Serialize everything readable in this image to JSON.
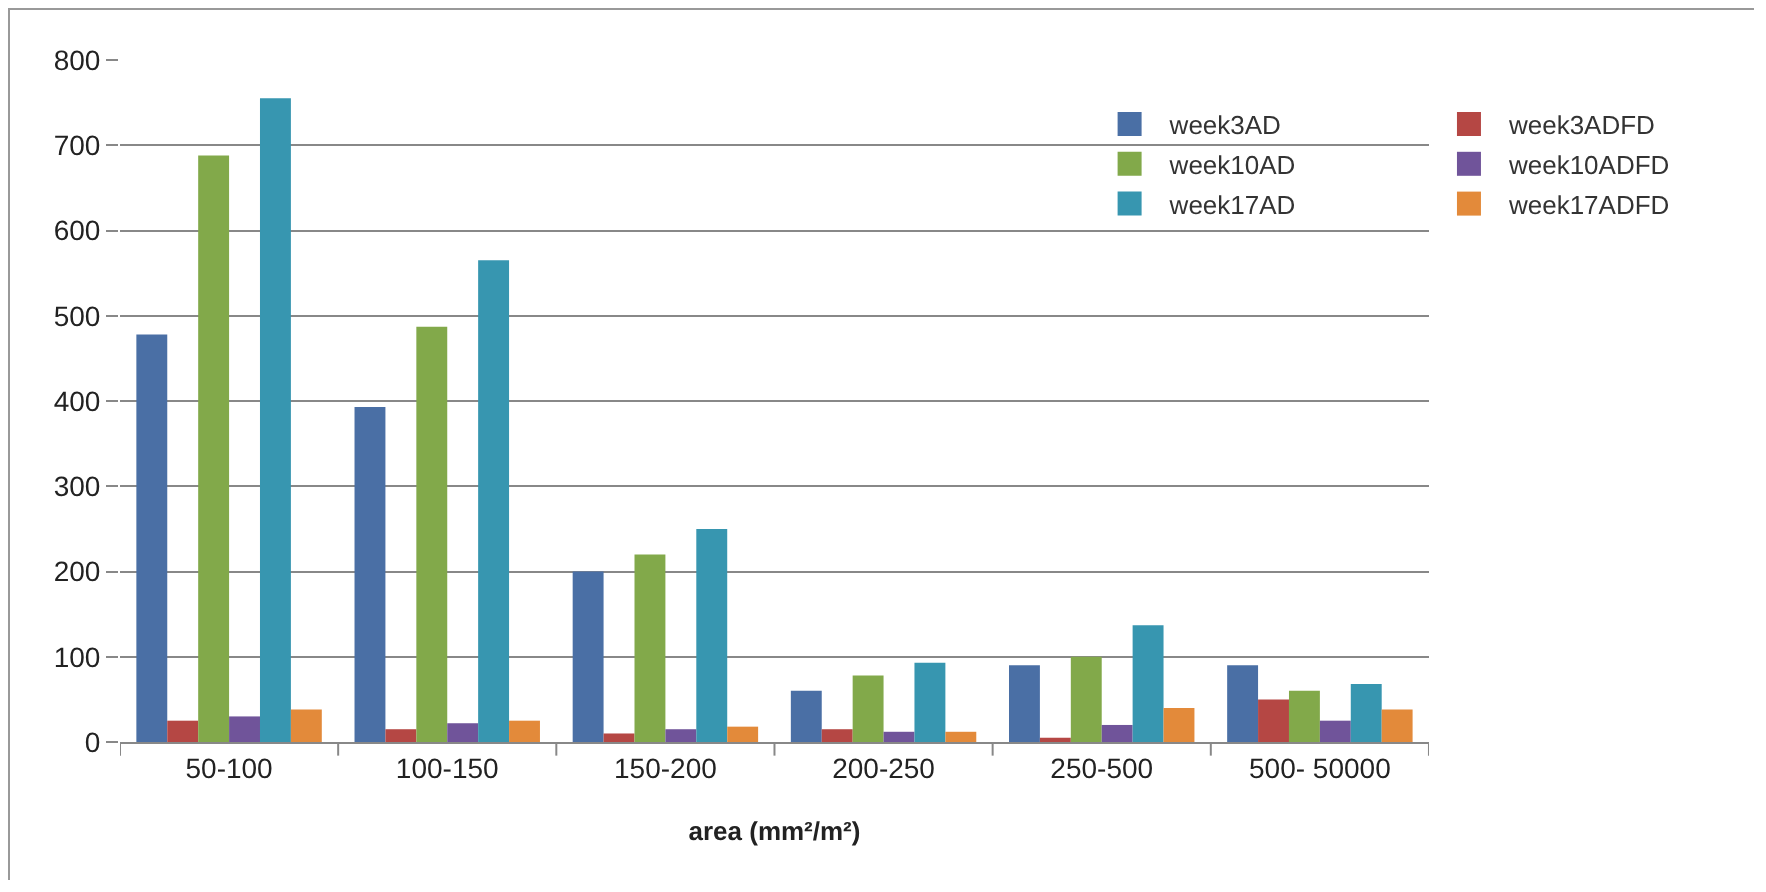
{
  "chart_data": {
    "type": "bar",
    "xlabel": "area (mm²/m²)",
    "categories": [
      "50-100",
      "100-150",
      "150-200",
      "200-250",
      "250-500",
      "500- 50000"
    ],
    "series": [
      {
        "name": "week3AD",
        "color": "#4a6fa5",
        "values": [
          478,
          393,
          200,
          60,
          90,
          90
        ]
      },
      {
        "name": "week3ADFD",
        "color": "#b54744",
        "values": [
          25,
          15,
          10,
          15,
          5,
          50
        ]
      },
      {
        "name": "week10AD",
        "color": "#82a94a",
        "values": [
          688,
          487,
          220,
          78,
          100,
          60
        ]
      },
      {
        "name": "week10ADFD",
        "color": "#70549a",
        "values": [
          30,
          22,
          15,
          12,
          20,
          25
        ]
      },
      {
        "name": "week17AD",
        "color": "#3796b0",
        "values": [
          755,
          565,
          250,
          93,
          137,
          68
        ]
      },
      {
        "name": "week17ADFD",
        "color": "#e38a3a",
        "values": [
          38,
          25,
          18,
          12,
          40,
          38
        ]
      }
    ],
    "ylim": [
      0,
      800
    ],
    "yticks": [
      0,
      100,
      200,
      300,
      400,
      500,
      600,
      700,
      800
    ],
    "grid": "y",
    "legend": "right"
  }
}
